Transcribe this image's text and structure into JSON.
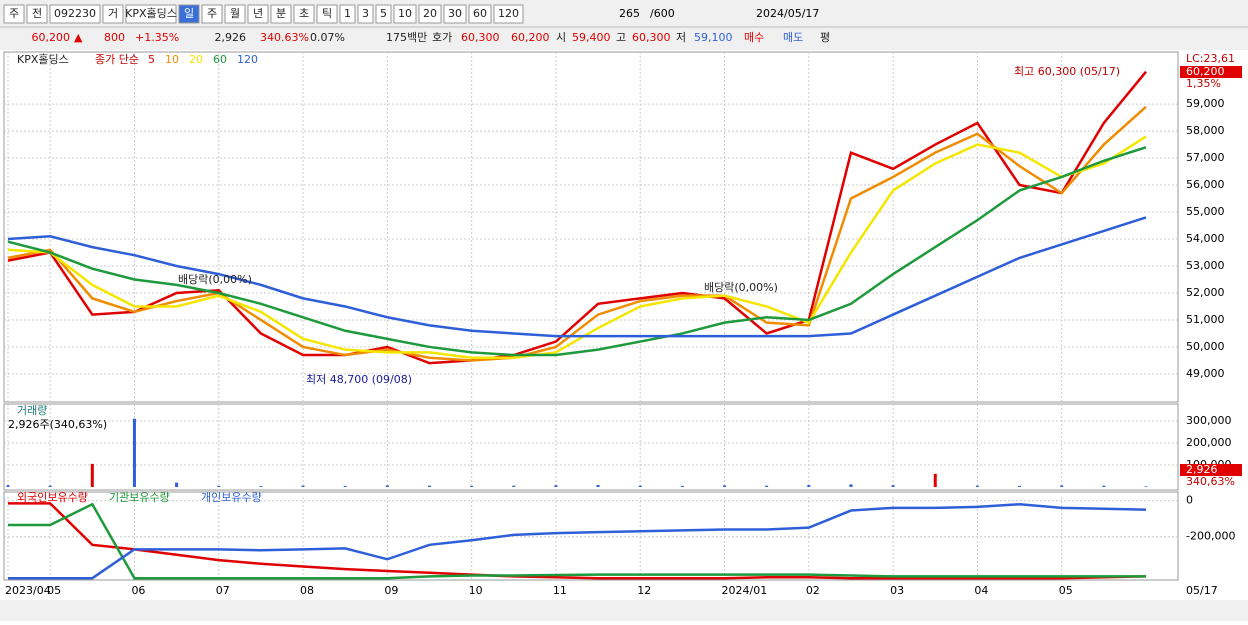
{
  "toolbar": {
    "items": [
      "주",
      "전",
      "092230",
      "거",
      "KPX홀딩스",
      "일",
      "주",
      "월",
      "년",
      "분",
      "초",
      "틱",
      "1",
      "3",
      "5",
      "10",
      "20",
      "30",
      "60",
      "120"
    ],
    "count": "265",
    "max": "/600",
    "date": "2024/05/17"
  },
  "quote": {
    "price": "60,200",
    "arrow": "▲",
    "change": "800",
    "change_pct": "+1.35%",
    "volume": "2,926",
    "volume_pct": "340.63%",
    "turnover_pct": "0.07%",
    "amount": "175백만",
    "ask_label": "호가",
    "ask": "60,300",
    "bid": "60,200",
    "open_label": "시",
    "open": "59,400",
    "high_label": "고",
    "high": "60,300",
    "low_label": "저",
    "low": "59,100",
    "buy": "매수",
    "sell": "매도",
    "avg": "평"
  },
  "x_categories": [
    "2023/04",
    "05",
    null,
    "06",
    null,
    "07",
    null,
    "08",
    null,
    "09",
    null,
    "10",
    null,
    "11",
    null,
    "12",
    null,
    "2024/01",
    null,
    "02",
    null,
    "03",
    null,
    "04",
    null,
    "05",
    null,
    null
  ],
  "x_end_label": "05/17",
  "chart_data": [
    {
      "type": "line",
      "title": "KPX홀딩스",
      "subtitle": "종가 단순",
      "series": [
        {
          "name": "5",
          "color": "#e00000",
          "values": [
            53200,
            53500,
            51200,
            51300,
            52000,
            52100,
            50500,
            49700,
            49700,
            50000,
            49400,
            49500,
            49700,
            50200,
            51600,
            51800,
            52000,
            51800,
            50500,
            51000,
            57200,
            56600,
            57500,
            58300,
            56000,
            55700,
            58300,
            60200
          ]
        },
        {
          "name": "10",
          "color": "#f08c00",
          "values": [
            53300,
            53600,
            51800,
            51300,
            51700,
            52000,
            51000,
            50000,
            49700,
            49900,
            49600,
            49500,
            49600,
            50000,
            51200,
            51700,
            51900,
            51900,
            50900,
            50800,
            55500,
            56300,
            57200,
            57900,
            56700,
            55700,
            57500,
            58900
          ]
        },
        {
          "name": "20",
          "color": "#f5e600",
          "values": [
            53600,
            53500,
            52300,
            51500,
            51500,
            51900,
            51300,
            50300,
            49900,
            49800,
            49800,
            49600,
            49600,
            49800,
            50700,
            51500,
            51800,
            51900,
            51500,
            50900,
            53500,
            55800,
            56800,
            57500,
            57200,
            56300,
            56800,
            57800
          ]
        },
        {
          "name": "60",
          "color": "#1e9a3c",
          "values": [
            53900,
            53500,
            52900,
            52500,
            52300,
            52000,
            51600,
            51100,
            50600,
            50300,
            50000,
            49800,
            49700,
            49700,
            49900,
            50200,
            50500,
            50900,
            51100,
            51000,
            51600,
            52700,
            53700,
            54700,
            55800,
            56300,
            56900,
            57400
          ]
        },
        {
          "name": "120",
          "color": "#2f5fd8",
          "values": [
            54000,
            54100,
            53700,
            53400,
            53000,
            52700,
            52300,
            51800,
            51500,
            51100,
            50800,
            50600,
            50500,
            50400,
            50400,
            50400,
            50400,
            50400,
            50400,
            50400,
            50500,
            51200,
            51900,
            52600,
            53300,
            53800,
            54300,
            54800
          ]
        }
      ],
      "ylim": [
        47960,
        60930
      ],
      "yticks": [
        {
          "value": 49000,
          "label": "49,000"
        },
        {
          "value": 50000,
          "label": "50,000"
        },
        {
          "value": 51000,
          "label": "51,000"
        },
        {
          "value": 52000,
          "label": "52,000"
        },
        {
          "value": 53000,
          "label": "53,000"
        },
        {
          "value": 54000,
          "label": "54,000"
        },
        {
          "value": 55000,
          "label": "55,000"
        },
        {
          "value": 56000,
          "label": "56,000"
        },
        {
          "value": 57000,
          "label": "57,000"
        },
        {
          "value": 58000,
          "label": "58,000"
        },
        {
          "value": 59000,
          "label": "59,000"
        }
      ],
      "annotations": [
        "최고 60,300 (05/17)",
        "최저 48,700 (09/08)",
        "배당락(0,00%)",
        "배당락(0,00%)"
      ],
      "last_labels": [
        "LC:23,61",
        "60,200",
        "1,35%"
      ],
      "grid": true
    },
    {
      "type": "bar",
      "title": "거래량",
      "subtitle": "2,926주(340,63%)",
      "color": "#2f5fd8",
      "values": [
        8000,
        6000,
        105000,
        310000,
        20000,
        5000,
        4000,
        6000,
        5000,
        7000,
        6000,
        5000,
        6000,
        8000,
        9000,
        6000,
        5000,
        7000,
        6000,
        9000,
        12000,
        8000,
        60000,
        6000,
        5000,
        7000,
        6000,
        2926
      ],
      "ylim": [
        0,
        377000
      ],
      "yticks": [
        {
          "value": 100000,
          "label": "100,000"
        },
        {
          "value": 200000,
          "label": "200,000"
        },
        {
          "value": 300000,
          "label": "300,000"
        }
      ],
      "last_labels": [
        "2,926",
        "340,63%"
      ],
      "grid": true
    },
    {
      "type": "line",
      "series": [
        {
          "name": "외국인보유수량",
          "color": "#e00000",
          "values": [
            -15000,
            -15000,
            -245000,
            -270000,
            -300000,
            -330000,
            -350000,
            -365000,
            -380000,
            -390000,
            -400000,
            -410000,
            -420000,
            -425000,
            -430000,
            -430000,
            -430000,
            -430000,
            -425000,
            -425000,
            -430000,
            -430000,
            -430000,
            -430000,
            -430000,
            -430000,
            -425000,
            -420000
          ]
        },
        {
          "name": "기관보유수량",
          "color": "#1e9a3c",
          "values": [
            -135000,
            -135000,
            -20000,
            -430000,
            -430000,
            -430000,
            -430000,
            -430000,
            -430000,
            -430000,
            -420000,
            -415000,
            -415000,
            -412000,
            -410000,
            -410000,
            -410000,
            -410000,
            -410000,
            -410000,
            -415000,
            -420000,
            -420000,
            -420000,
            -420000,
            -420000,
            -420000,
            -420000
          ]
        },
        {
          "name": "개인보유수량",
          "color": "#2f5fd8",
          "values": [
            -430000,
            -430000,
            -430000,
            -270000,
            -270000,
            -270000,
            -275000,
            -270000,
            -265000,
            -325000,
            -245000,
            -220000,
            -190000,
            -180000,
            -175000,
            -170000,
            -165000,
            -160000,
            -160000,
            -150000,
            -55000,
            -40000,
            -40000,
            -35000,
            -20000,
            -40000,
            -45000,
            -50000
          ]
        }
      ],
      "ylim": [
        -440000,
        20000
      ],
      "yticks": [
        0,
        {
          "value": -200000,
          "label": "-200,000"
        }
      ],
      "grid": true
    }
  ]
}
